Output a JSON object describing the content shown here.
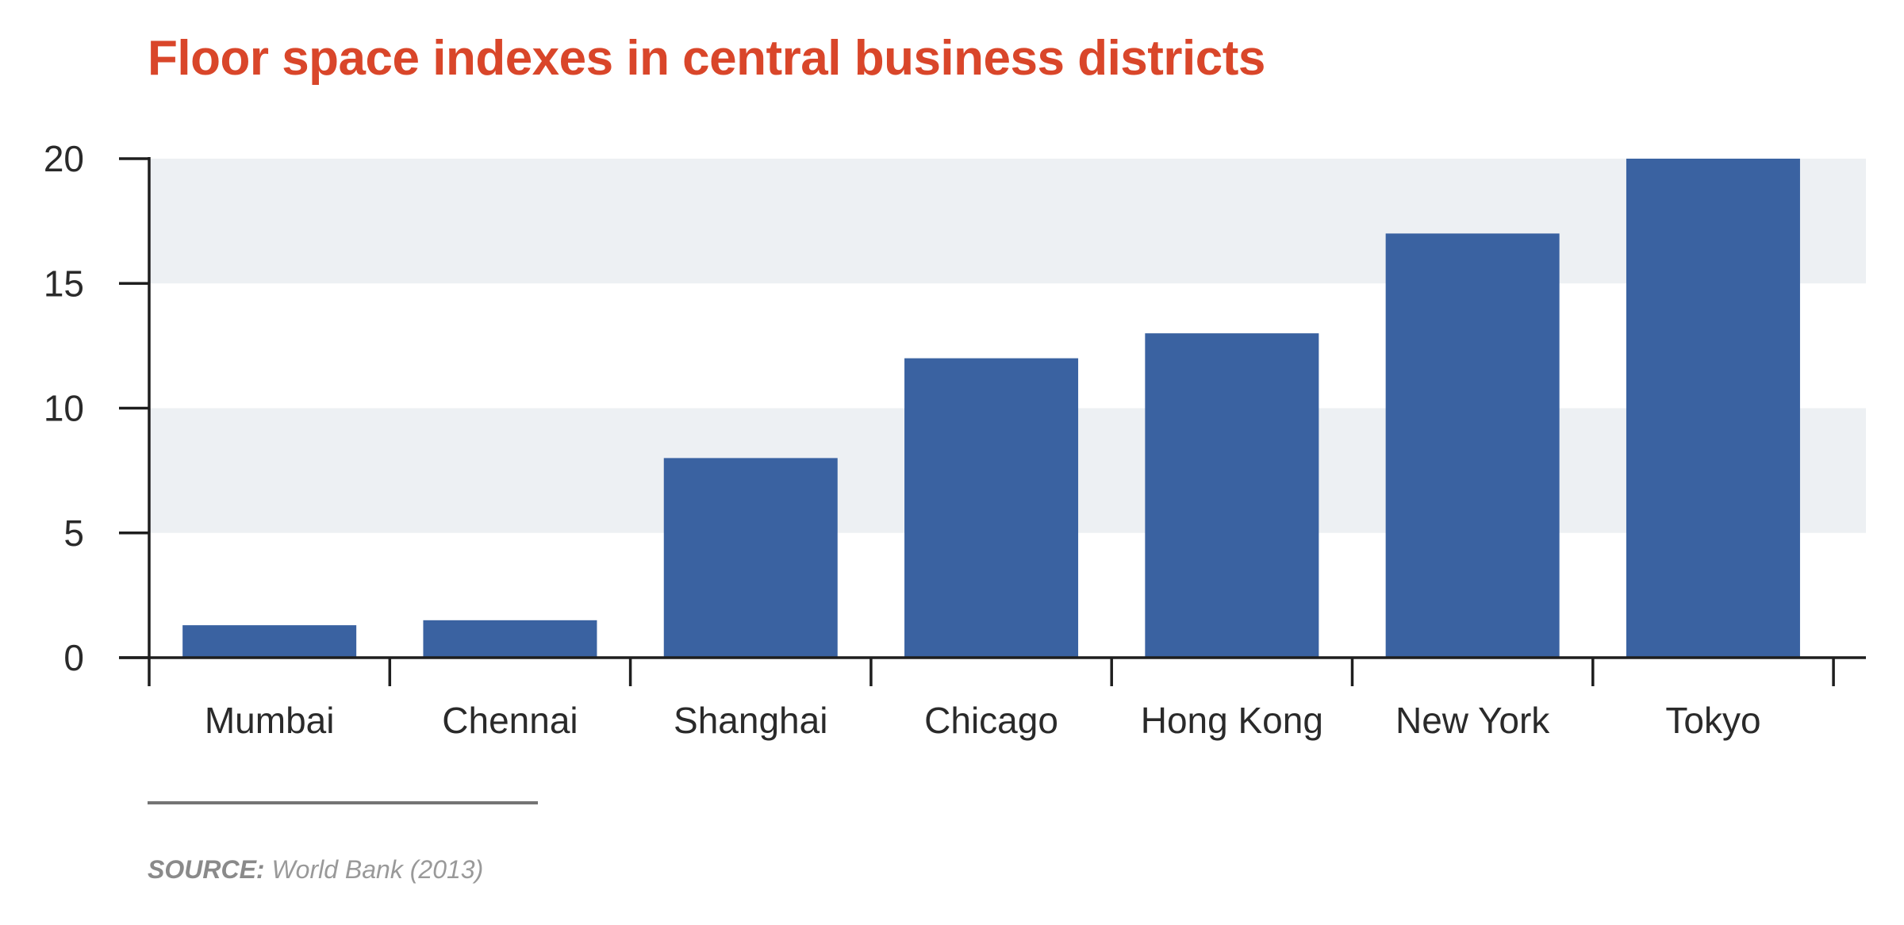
{
  "colors": {
    "title": "#d9462a",
    "bar": "#3a62a1",
    "band": "#edf0f3",
    "axis": "#1e1e1e",
    "text": "#2a2a2a",
    "source_rule": "#747474",
    "source_text": "#999999",
    "source_label": "#8a8a8a"
  },
  "source": {
    "label": "SOURCE:",
    "text": "World Bank (2013)"
  },
  "chart_data": {
    "type": "bar",
    "title": "Floor space indexes in central business districts",
    "xlabel": "",
    "ylabel": "",
    "categories": [
      "Mumbai",
      "Chennai",
      "Shanghai",
      "Chicago",
      "Hong Kong",
      "New York",
      "Tokyo"
    ],
    "values": [
      1.3,
      1.5,
      8,
      12,
      13,
      17,
      20
    ],
    "ylim": [
      0,
      20
    ],
    "yticks": [
      0,
      5,
      10,
      15,
      20
    ],
    "ytick_labels": [
      "0",
      "5",
      "10",
      "15",
      "20"
    ],
    "grid": "alternating horizontal bands",
    "legend": "none"
  }
}
